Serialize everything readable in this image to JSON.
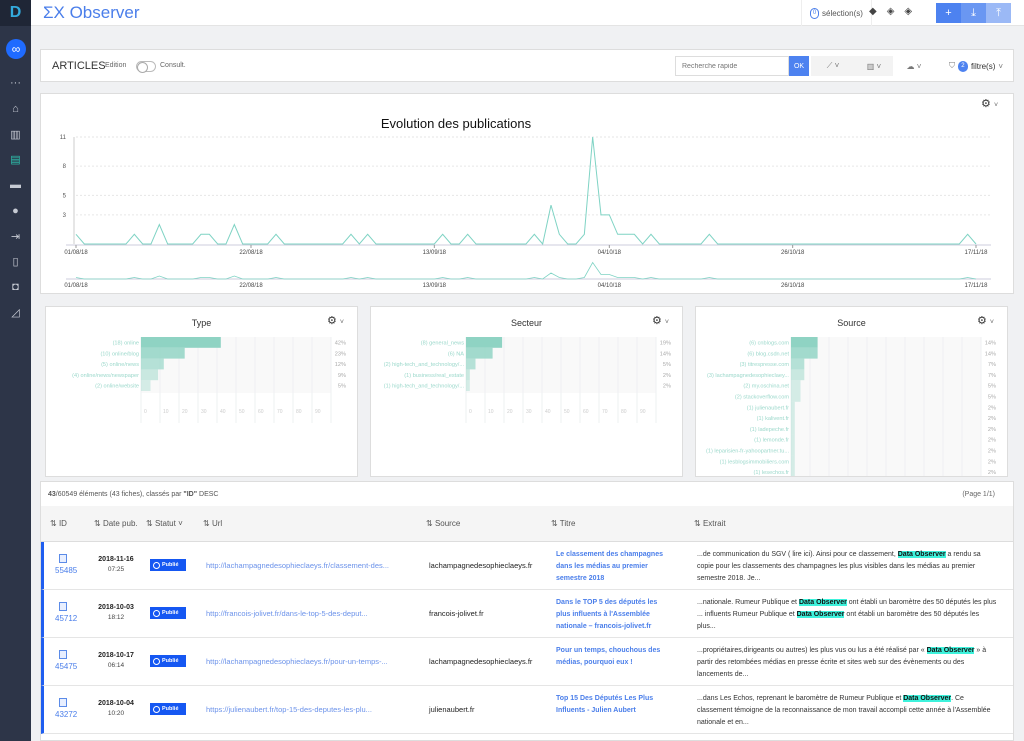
{
  "app": {
    "logo": "D",
    "brand": "ΣX Observer",
    "selection_count": "0",
    "selection_label": "sélection(s)",
    "layer_icons": [
      "layers-icon",
      "layers-icon",
      "layers-icon"
    ],
    "actions": [
      {
        "icon": "plus-icon",
        "label": "+"
      },
      {
        "icon": "download-icon",
        "label": "⤓"
      },
      {
        "icon": "upload-icon",
        "label": "⤒"
      }
    ]
  },
  "sidebar": {
    "main": "∞",
    "items": [
      {
        "icon": "more-icon",
        "glyph": "···"
      },
      {
        "icon": "home-icon",
        "glyph": "⌂"
      },
      {
        "icon": "bar-chart-icon",
        "glyph": "▥"
      },
      {
        "icon": "articles-icon",
        "glyph": "▤",
        "active": true
      },
      {
        "icon": "folder-icon",
        "glyph": "▬"
      },
      {
        "icon": "user-icon",
        "glyph": "●"
      },
      {
        "icon": "login-icon",
        "glyph": "⇥"
      },
      {
        "icon": "document-icon",
        "glyph": "▯"
      },
      {
        "icon": "inbox-icon",
        "glyph": "◘"
      },
      {
        "icon": "tools-icon",
        "glyph": "◿"
      }
    ]
  },
  "toolbar": {
    "title": "ARTICLES",
    "edition": "Edition",
    "consult": "Consult.",
    "search_placeholder": "Recherche rapide",
    "ok": "OK",
    "line_chart": "⟋ ˅",
    "bar_chart": "▥ ˅",
    "cloud": "☁ ˅",
    "filter_count": "2",
    "filter_label": "filtre(s)"
  },
  "chart_data": [
    {
      "type": "line",
      "title": "Evolution des publications",
      "xlabel": "",
      "ylabel": "",
      "ylim": [
        0,
        11
      ],
      "yticks": [
        3,
        5,
        8,
        11
      ],
      "xticks": [
        "01/08/18",
        "22/08/18",
        "13/09/18",
        "04/10/18",
        "26/10/18",
        "17/11/18"
      ],
      "x_range": [
        "01/08/18",
        "17/11/18"
      ],
      "x_interval": "daily",
      "grid": "horizontal dashed",
      "color": "#7fd3c4",
      "values": [
        1,
        0,
        0,
        0,
        0,
        0,
        0,
        1,
        0,
        0,
        2,
        0,
        0,
        0,
        0,
        1,
        1,
        0,
        0,
        2,
        0,
        0,
        0,
        0,
        1,
        0,
        0,
        0,
        0,
        0,
        0,
        0,
        0,
        1,
        0,
        1,
        0,
        0,
        0,
        0,
        0,
        0,
        0,
        0,
        1,
        0,
        0,
        1,
        0,
        0,
        0,
        0,
        0,
        0,
        0,
        1,
        0,
        4,
        1,
        0,
        0,
        1,
        11,
        3,
        3,
        1,
        1,
        1,
        0,
        1,
        0,
        0,
        0,
        0,
        0,
        0,
        1,
        0,
        0,
        0,
        0,
        0,
        0,
        0,
        0,
        0,
        0,
        0,
        0,
        0,
        0,
        0,
        0,
        0,
        0,
        0,
        0,
        0,
        0,
        0,
        0,
        0,
        0,
        0,
        0,
        0,
        0,
        1,
        0
      ],
      "navigator": true
    },
    {
      "type": "bar",
      "orientation": "horizontal",
      "title": "Type",
      "xticks": [
        0,
        10,
        20,
        30,
        40,
        50,
        60,
        70,
        80,
        90
      ],
      "xlim": [
        0,
        100
      ],
      "color": "#8fd3c3",
      "categories": [
        "(18) online",
        "(10) online/blog",
        "(5) online/news",
        "(4) online/news/newspaper",
        "(2) online/website"
      ],
      "values": [
        42,
        23,
        12,
        9,
        5
      ],
      "labels": [
        "42%",
        "23%",
        "12%",
        "9%",
        "5%"
      ]
    },
    {
      "type": "bar",
      "orientation": "horizontal",
      "title": "Secteur",
      "xticks": [
        0,
        10,
        20,
        30,
        40,
        50,
        60,
        70,
        80,
        90
      ],
      "xlim": [
        0,
        100
      ],
      "color": "#8fd3c3",
      "categories": [
        "(8) general_news",
        "(6) NA",
        "(2) high-tech_and_technology/...",
        "(1) business/real_estate",
        "(1) high-tech_and_technology/..."
      ],
      "values": [
        19,
        14,
        5,
        2,
        2
      ],
      "labels": [
        "19%",
        "14%",
        "5%",
        "2%",
        "2%"
      ]
    },
    {
      "type": "bar",
      "orientation": "horizontal",
      "title": "Source",
      "xlim": [
        0,
        100
      ],
      "color": "#8fd3c3",
      "categories": [
        "(6) cnblogs.com",
        "(6) blog.csdn.net",
        "(3) titrespresse.com",
        "(3) lachampagnedesophieclaey...",
        "(2) my.oschina.net",
        "(2) stackoverflow.com",
        "(1) julienaubert.fr",
        "(1) kalivent.fr",
        "(1) ladepeche.fr",
        "(1) lemonde.fr",
        "(1) leparisien-fr-yahoopartner.tu...",
        "(1) lesblogsimmobiliers.com",
        "(1) lesechos.fr"
      ],
      "values": [
        14,
        14,
        7,
        7,
        5,
        5,
        2,
        2,
        2,
        2,
        2,
        2,
        2
      ],
      "labels": [
        "14%",
        "14%",
        "7%",
        "7%",
        "5%",
        "5%",
        "2%",
        "2%",
        "2%",
        "2%",
        "2%",
        "2%",
        "2%"
      ]
    }
  ],
  "table": {
    "info_count": "43",
    "info_rest": "/60549 éléments (43 fiches), classés par ",
    "info_key": "\"ID\"",
    "info_order": "DESC",
    "page": "(Page 1/1)",
    "columns": [
      "ID",
      "Date pub.",
      "Statut",
      "Url",
      "Source",
      "Titre",
      "Extrait"
    ],
    "rows": [
      {
        "id": "55485",
        "date": "2018-11-16",
        "time": "07:25",
        "status": "Publié",
        "url": "http://lachampagnedesophieclaeys.fr/classement-des...",
        "source": "lachampagnedesophieclaeys.fr",
        "title": "Le classement des champagnes dans les médias au premier semestre 2018",
        "extract": [
          {
            "t": "...de communication du SGV ( lire ici). Ainsi pour ce classement, "
          },
          {
            "t": "Data Observer",
            "hl": true
          },
          {
            "t": " a rendu sa copie pour les classements des champagnes les plus visibles dans les médias au premier semestre 2018. Je..."
          }
        ]
      },
      {
        "id": "45712",
        "date": "2018-10-03",
        "time": "18:12",
        "status": "Publié",
        "url": "http://francois-jolivet.fr/dans-le-top-5-des-deput...",
        "source": "francois-jolivet.fr",
        "title": "Dans le TOP 5 des députés les plus influents à l'Assemblée nationale – francois-jolivet.fr",
        "extract": [
          {
            "t": "...nationale. Rumeur Publique et "
          },
          {
            "t": "Data Observer",
            "hl": true
          },
          {
            "t": " ont établi un baromètre des 50 députés les plus ... influents Rumeur Publique et "
          },
          {
            "t": "Data Observer",
            "hl": true
          },
          {
            "t": " ont établi un baromètre des 50 députés les plus..."
          }
        ]
      },
      {
        "id": "45475",
        "date": "2018-10-17",
        "time": "06:14",
        "status": "Publié",
        "url": "http://lachampagnedesophieclaeys.fr/pour-un-temps-...",
        "source": "lachampagnedesophieclaeys.fr",
        "title": "Pour un temps, chouchous des médias, pourquoi eux !",
        "extract": [
          {
            "t": "...propriétaires,dirigeants ou autres) les plus vus ou lus a été réalisé par « "
          },
          {
            "t": "Data Observer",
            "hl": true
          },
          {
            "t": " » à partir des retombées médias en presse écrite et sites web sur des évènements ou des lancements de..."
          }
        ]
      },
      {
        "id": "43272",
        "date": "2018-10-04",
        "time": "10:20",
        "status": "Publié",
        "url": "https://julienaubert.fr/top-15-des-deputes-les-plu...",
        "source": "julienaubert.fr",
        "title": "Top 15 Des Députés Les Plus Influents - Julien Aubert",
        "extract": [
          {
            "t": "...dans Les Echos, reprenant le baromètre de Rumeur Publique et "
          },
          {
            "t": "Data Observer",
            "hl": true
          },
          {
            "t": ". Ce classement témoigne de la reconnaissance de mon travail accompli cette année à l'Assemblée nationale et en..."
          }
        ]
      }
    ]
  }
}
